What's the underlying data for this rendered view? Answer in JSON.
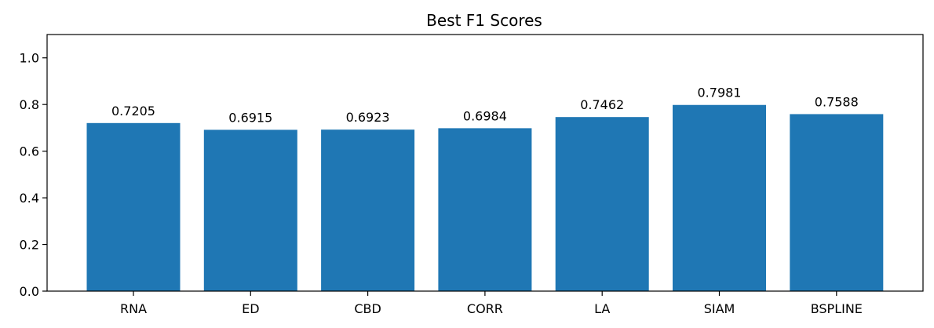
{
  "chart_data": {
    "type": "bar",
    "title": "Best F1 Scores",
    "xlabel": "",
    "ylabel": "",
    "categories": [
      "RNA",
      "ED",
      "CBD",
      "CORR",
      "LA",
      "SIAM",
      "BSPLINE"
    ],
    "values": [
      0.7205,
      0.6915,
      0.6923,
      0.6984,
      0.7462,
      0.7981,
      0.7588
    ],
    "data_labels": [
      "0.7205",
      "0.6915",
      "0.6923",
      "0.6984",
      "0.7462",
      "0.7981",
      "0.7588"
    ],
    "ylim": [
      0,
      1.1
    ],
    "yticks": [
      0.0,
      0.2,
      0.4,
      0.6,
      0.8,
      1.0
    ],
    "ytick_labels": [
      "0.0",
      "0.2",
      "0.4",
      "0.6",
      "0.8",
      "1.0"
    ],
    "bar_color": "#1f77b4",
    "grid": false,
    "legend": "none"
  }
}
